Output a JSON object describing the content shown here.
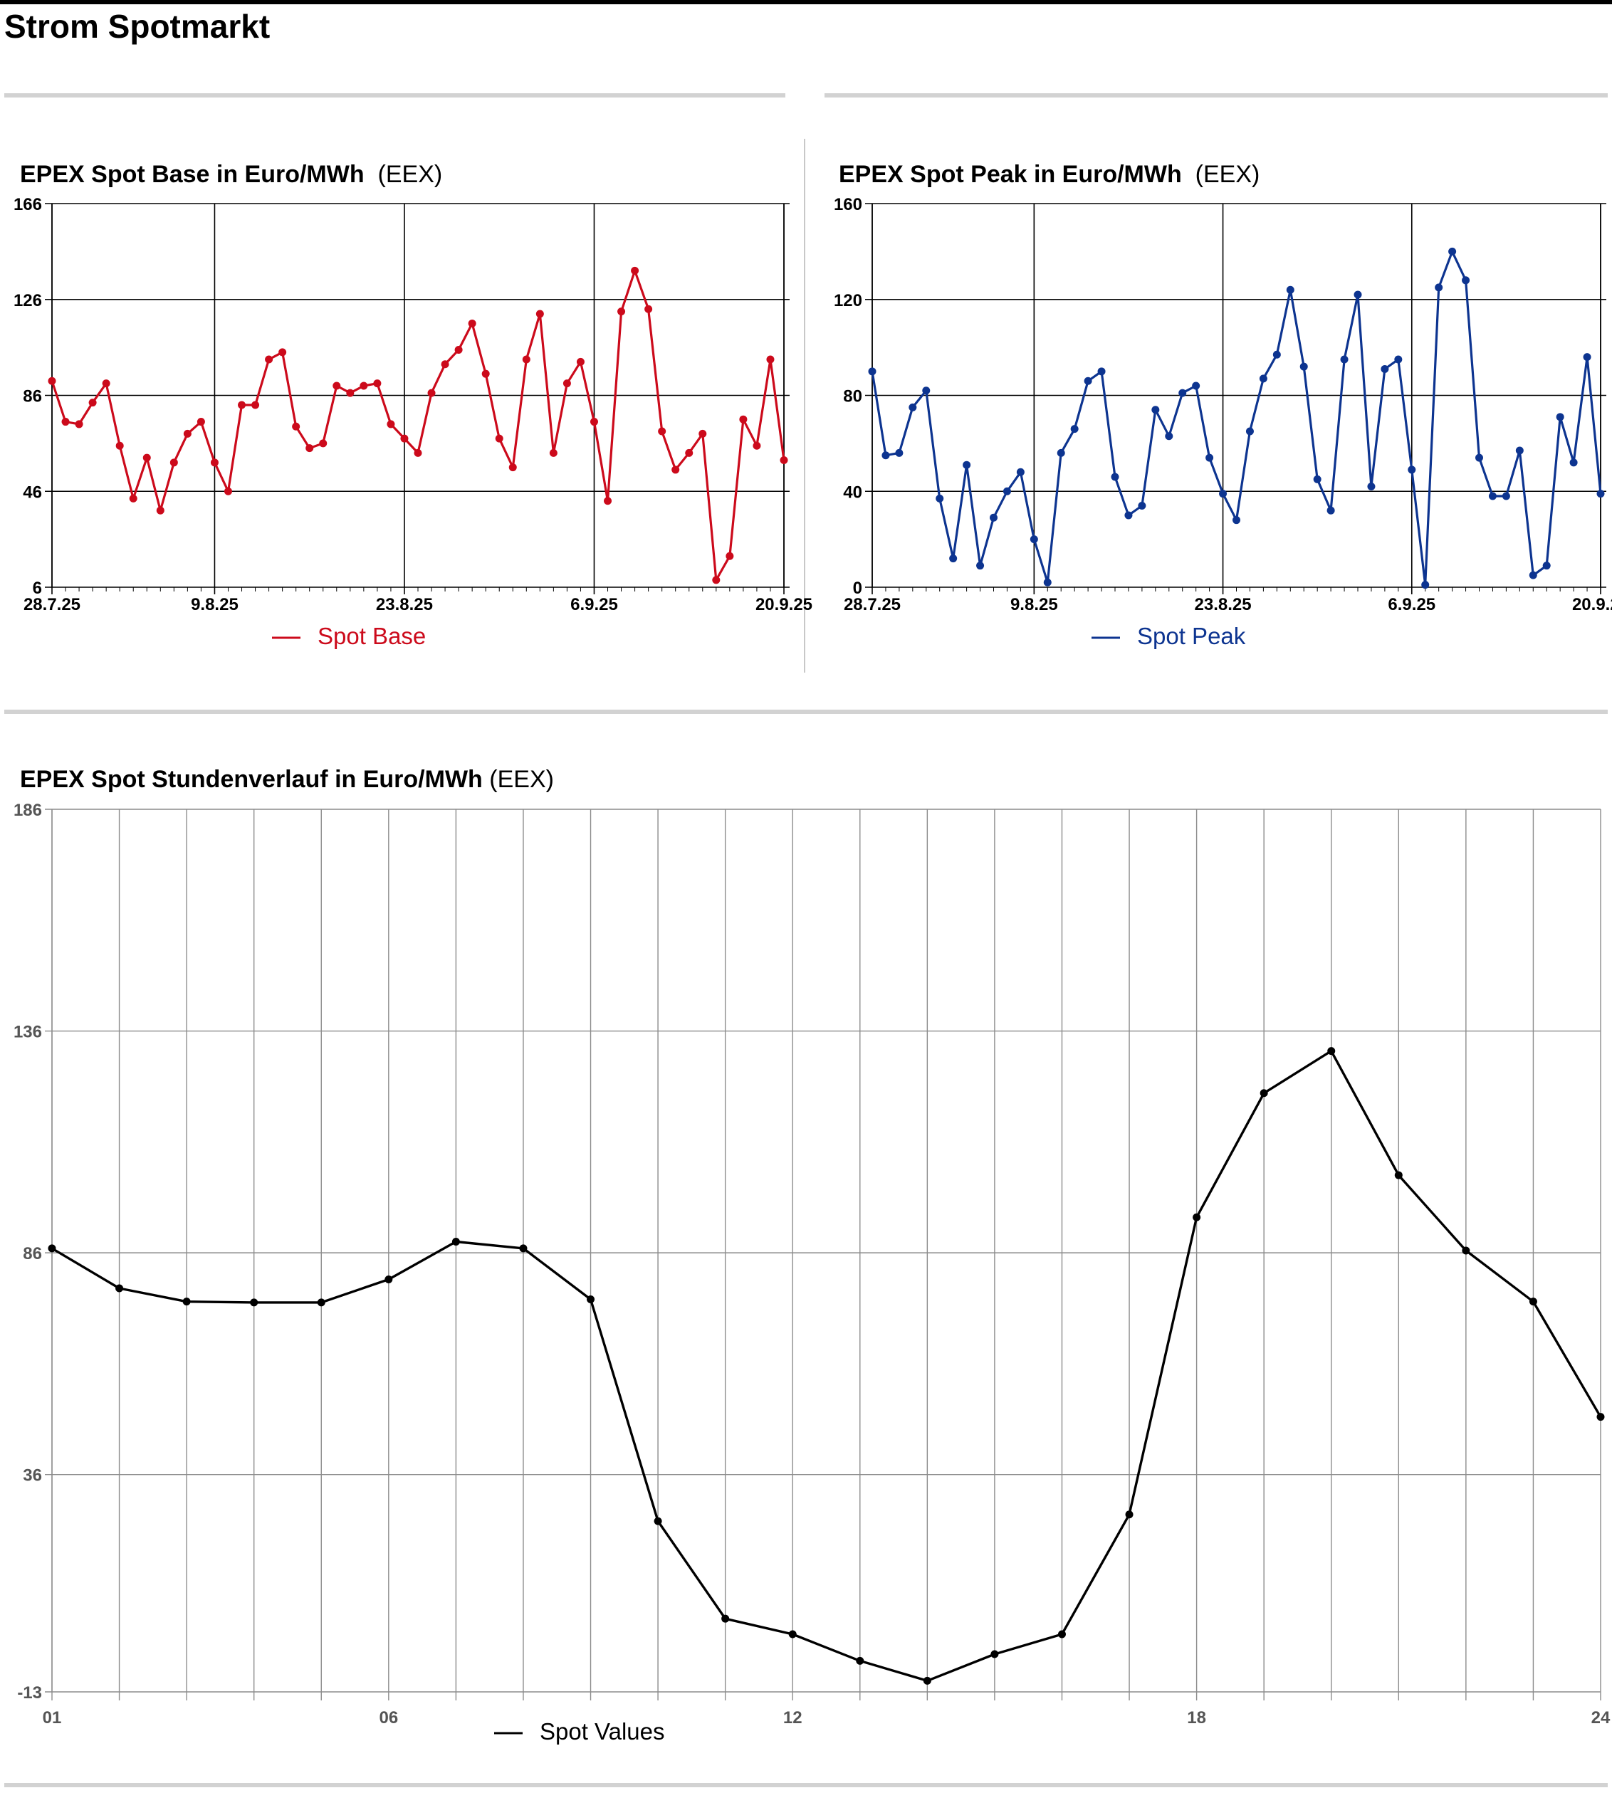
{
  "page": {
    "title": "Strom Spotmarkt"
  },
  "colors": {
    "base": "#cc0a1b",
    "peak": "#0d3490",
    "hourly": "#000000",
    "grid": "#000000",
    "hourly_grid": "#8c8c8c",
    "rule": "#d2d2d2"
  },
  "chart_data": [
    {
      "id": "base",
      "type": "line",
      "title": "EPEX Spot Base in Euro/MWh",
      "source": "(EEX)",
      "xlabel": "",
      "ylabel": "",
      "ylim": [
        6,
        166
      ],
      "y_ticks": [
        "6",
        "46",
        "86",
        "126",
        "166"
      ],
      "x_ticks": [
        "28.7.25",
        "9.8.25",
        "23.8.25",
        "6.9.25",
        "20.9.25"
      ],
      "x_tick_index": [
        0,
        12,
        26,
        40,
        54
      ],
      "grid": true,
      "legend_position": "bottom-center",
      "series": [
        {
          "name": "Spot Base",
          "values": [
            92,
            75,
            74,
            83,
            91,
            65,
            43,
            60,
            38,
            58,
            70,
            75,
            58,
            46,
            82,
            82,
            101,
            104,
            73,
            64,
            66,
            90,
            87,
            90,
            91,
            74,
            68,
            62,
            87,
            99,
            105,
            116,
            95,
            68,
            56,
            101,
            120,
            62,
            91,
            100,
            75,
            42,
            121,
            138,
            122,
            71,
            55,
            62,
            70,
            9,
            19,
            76,
            65,
            101,
            59
          ]
        }
      ]
    },
    {
      "id": "peak",
      "type": "line",
      "title": "EPEX Spot Peak in Euro/MWh",
      "source": "(EEX)",
      "xlabel": "",
      "ylabel": "",
      "ylim": [
        0,
        160
      ],
      "y_ticks": [
        "0",
        "40",
        "80",
        "120",
        "160"
      ],
      "x_ticks": [
        "28.7.25",
        "9.8.25",
        "23.8.25",
        "6.9.25",
        "20.9.25"
      ],
      "x_tick_index": [
        0,
        12,
        26,
        40,
        54
      ],
      "grid": true,
      "legend_position": "bottom-center",
      "series": [
        {
          "name": "Spot Peak",
          "values": [
            90,
            55,
            56,
            75,
            82,
            37,
            12,
            51,
            9,
            29,
            40,
            48,
            20,
            2,
            56,
            66,
            86,
            90,
            46,
            30,
            34,
            74,
            63,
            81,
            84,
            54,
            39,
            28,
            65,
            87,
            97,
            124,
            92,
            45,
            32,
            95,
            122,
            42,
            91,
            95,
            49,
            1,
            125,
            140,
            128,
            54,
            38,
            38,
            57,
            5,
            9,
            71,
            52,
            96,
            39
          ]
        }
      ]
    },
    {
      "id": "hourly",
      "type": "line",
      "title": "EPEX Spot Stundenverlauf in Euro/MWh",
      "source": "(EEX)",
      "xlabel": "",
      "ylabel": "",
      "ylim": [
        -13,
        186
      ],
      "y_ticks": [
        "-13",
        "36",
        "86",
        "136",
        "186"
      ],
      "x": [
        1,
        2,
        3,
        4,
        5,
        6,
        7,
        8,
        9,
        10,
        11,
        12,
        13,
        14,
        15,
        16,
        17,
        18,
        19,
        20,
        21,
        22,
        23,
        24
      ],
      "x_ticks": [
        "01",
        "06",
        "12",
        "18",
        "24"
      ],
      "x_tick_values": [
        1,
        6,
        12,
        18,
        24
      ],
      "grid": true,
      "legend_position": "bottom-center",
      "series": [
        {
          "name": "Spot Values",
          "values": [
            87,
            78,
            75,
            74.8,
            74.8,
            80,
            88.5,
            87,
            75.5,
            25.5,
            3.5,
            0,
            -6,
            -10.5,
            -4.5,
            0,
            27,
            94,
            122,
            131.5,
            103.5,
            86.5,
            75,
            49
          ]
        }
      ]
    }
  ]
}
